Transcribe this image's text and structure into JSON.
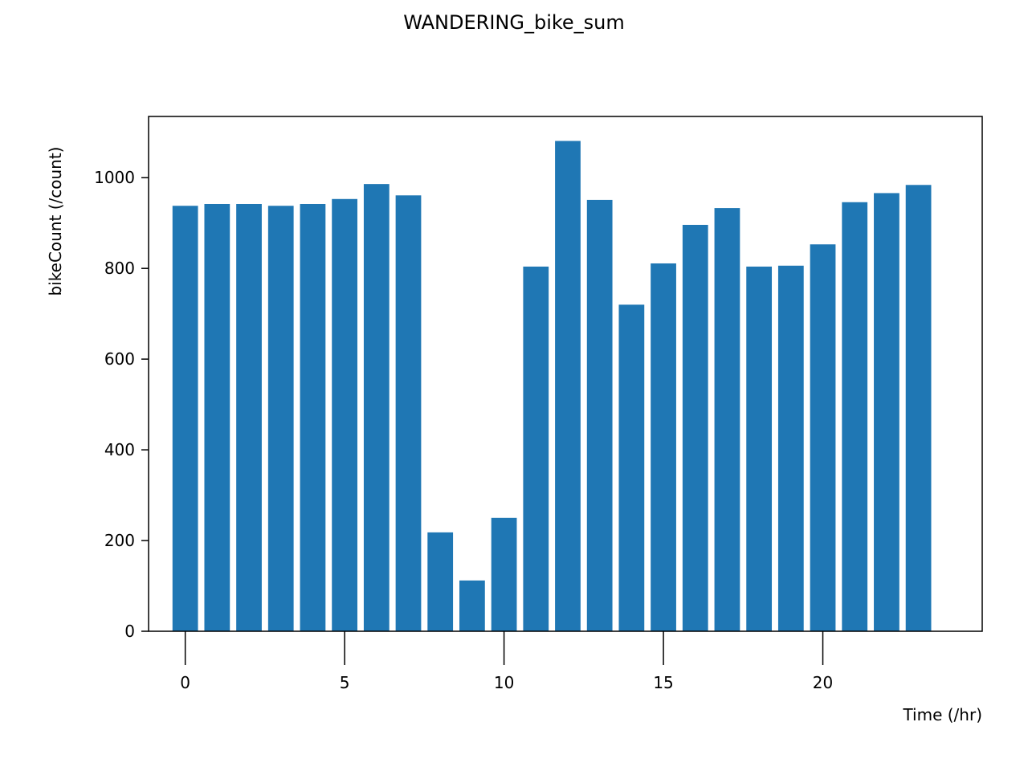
{
  "chart_data": {
    "type": "bar",
    "title": "WANDERING_bike_sum",
    "xlabel": "Time (/hr)",
    "ylabel": "bikeCount (/count)",
    "x": [
      0,
      1,
      2,
      3,
      4,
      5,
      6,
      7,
      8,
      9,
      10,
      11,
      12,
      13,
      14,
      15,
      16,
      17,
      18,
      19,
      20,
      21,
      22,
      23
    ],
    "values": [
      938,
      942,
      942,
      938,
      942,
      953,
      986,
      961,
      218,
      112,
      250,
      804,
      1081,
      951,
      720,
      811,
      896,
      933,
      804,
      806,
      853,
      946,
      966,
      984
    ],
    "xlim": [
      -1.15,
      25
    ],
    "ylim": [
      0,
      1135
    ],
    "xticks": [
      0,
      5,
      10,
      15,
      20
    ],
    "yticks": [
      0,
      200,
      400,
      600,
      800,
      1000
    ],
    "bar_color": "#1f77b4",
    "grid": false
  }
}
